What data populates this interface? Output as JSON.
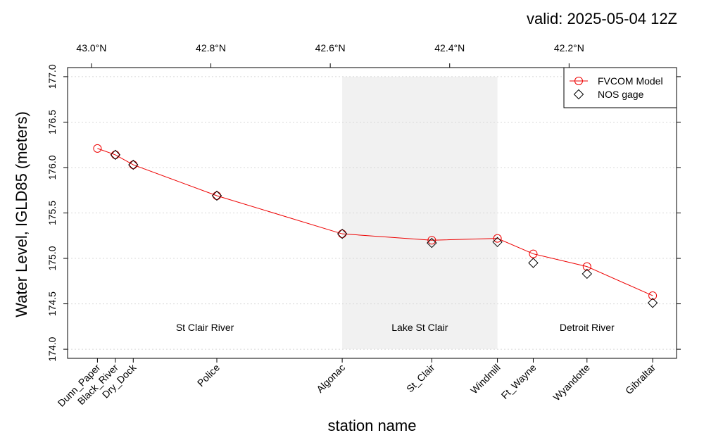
{
  "header": {
    "valid_label": "valid: 2025-05-04 12Z"
  },
  "chart_data": {
    "type": "line",
    "title": "",
    "xlabel": "station name",
    "ylabel": "Water Level, IGLD85 (meters)",
    "ylim": [
      173.9,
      177.1
    ],
    "yticks": [
      174.0,
      174.5,
      175.0,
      175.5,
      176.0,
      176.5,
      177.0
    ],
    "latitude_ticks": [
      "43.0°N",
      "42.8°N",
      "42.6°N",
      "42.4°N",
      "42.2°N"
    ],
    "latitude_tick_values": [
      43.0,
      42.8,
      42.6,
      42.4,
      42.2
    ],
    "categories": [
      "Dunn_Paper",
      "Black_River",
      "Dry_Dock",
      "Police",
      "Algonac",
      "St_Clair",
      "Windmill",
      "Ft_Wayne",
      "Wyandotte",
      "Gibraltar"
    ],
    "station_latitude": [
      42.99,
      42.96,
      42.93,
      42.79,
      42.58,
      42.43,
      42.32,
      42.26,
      42.17,
      42.06
    ],
    "series": [
      {
        "name": "FVCOM Model",
        "values": [
          176.21,
          176.14,
          176.03,
          175.69,
          175.27,
          175.2,
          175.22,
          175.05,
          174.91,
          174.59
        ],
        "color": "#ee0000"
      },
      {
        "name": "NOS gage",
        "values": [
          null,
          176.14,
          176.03,
          175.69,
          175.27,
          175.17,
          175.18,
          174.95,
          174.83,
          174.51
        ],
        "color": "#000000"
      }
    ],
    "regions": [
      {
        "label": "St Clair River",
        "lat_from": 43.04,
        "lat_to": 42.58,
        "shaded": false,
        "color": "#ffffff"
      },
      {
        "label": "Lake St Clair",
        "lat_from": 42.58,
        "lat_to": 42.32,
        "shaded": true,
        "color": "#f1f1f1"
      },
      {
        "label": "Detroit River",
        "lat_from": 42.32,
        "lat_to": 42.02,
        "shaded": false,
        "color": "#ffffff"
      }
    ],
    "region_label_level": 174.24,
    "xlim_lat": [
      43.04,
      42.02
    ],
    "grid": true,
    "legend_position": "top-right"
  }
}
